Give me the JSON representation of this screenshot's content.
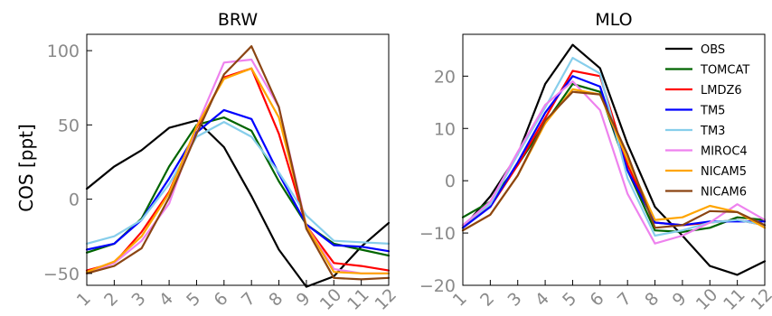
{
  "chart_data": {
    "ylabel": "COS [ppt]",
    "legend": {
      "location": "top-right of MLO panel"
    },
    "series_colors": {
      "OBS": "#000000",
      "TOMCAT": "#006400",
      "LMDZ6": "#ff0000",
      "TM5": "#0000ff",
      "TM3": "#87ceeb",
      "MIROC4": "#ee82ee",
      "NICAM5": "#ffa500",
      "NICAM6": "#8b4513"
    },
    "panels": [
      {
        "type": "line",
        "title": "BRW",
        "x": [
          1,
          2,
          3,
          4,
          5,
          6,
          7,
          8,
          9,
          10,
          11,
          12
        ],
        "xticks": [
          "1",
          "2",
          "3",
          "4",
          "5",
          "6",
          "7",
          "8",
          "9",
          "10",
          "11",
          "12"
        ],
        "ylim": [
          -58,
          111
        ],
        "yticks": [
          -50,
          0,
          50,
          100
        ],
        "series": [
          {
            "name": "OBS",
            "values": [
              7,
              22,
              33,
              48,
              53,
              35,
              2,
              -34,
              -59,
              -52,
              -32,
              -16
            ]
          },
          {
            "name": "TOMCAT",
            "values": [
              -36,
              -30,
              -13,
              22,
              50,
              55,
              46,
              12,
              -17,
              -30,
              -34,
              -38
            ]
          },
          {
            "name": "LMDZ6",
            "values": [
              -48,
              -43,
              -22,
              5,
              48,
              82,
              88,
              44,
              -18,
              -43,
              -45,
              -48
            ]
          },
          {
            "name": "TM5",
            "values": [
              -34,
              -30,
              -14,
              14,
              45,
              60,
              54,
              17,
              -17,
              -31,
              -32,
              -35
            ]
          },
          {
            "name": "TM3",
            "values": [
              -30,
              -25,
              -14,
              10,
              42,
              52,
              42,
              18,
              -11,
              -28,
              -29,
              -30
            ]
          },
          {
            "name": "MIROC4",
            "values": [
              -50,
              -43,
              -28,
              -3,
              49,
              92,
              94,
              62,
              -18,
              -47,
              -50,
              -50
            ]
          },
          {
            "name": "NICAM5",
            "values": [
              -49,
              -42,
              -25,
              4,
              49,
              81,
              88,
              55,
              -18,
              -49,
              -50,
              -50
            ]
          },
          {
            "name": "NICAM6",
            "values": [
              -50,
              -45,
              -33,
              1,
              44,
              84,
              103,
              62,
              -20,
              -53,
              -54,
              -53
            ]
          }
        ]
      },
      {
        "type": "line",
        "title": "MLO",
        "x": [
          1,
          2,
          3,
          4,
          5,
          6,
          7,
          8,
          9,
          10,
          11,
          12
        ],
        "xticks": [
          "1",
          "2",
          "3",
          "4",
          "5",
          "6",
          "7",
          "8",
          "9",
          "10",
          "11",
          "12"
        ],
        "ylim": [
          -20,
          28
        ],
        "yticks": [
          -20,
          -10,
          0,
          10,
          20
        ],
        "series": [
          {
            "name": "OBS",
            "values": [
              -9,
              -3,
              5,
              18.5,
              26,
              21.5,
              7,
              -5,
              -10.5,
              -16.3,
              -18,
              -15.4
            ]
          },
          {
            "name": "TOMCAT",
            "values": [
              -7,
              -4,
              3,
              11,
              18.5,
              17,
              2,
              -9.5,
              -9.8,
              -9,
              -7,
              -7.5
            ]
          },
          {
            "name": "LMDZ6",
            "values": [
              -8.5,
              -5,
              3,
              12,
              21,
              20,
              3,
              -8,
              -8.5,
              -8,
              -7.5,
              -8.5
            ]
          },
          {
            "name": "TM5",
            "values": [
              -9,
              -5,
              3.5,
              13,
              20,
              18,
              2,
              -8,
              -8.5,
              -7.8,
              -7.8,
              -7.8
            ]
          },
          {
            "name": "TM3",
            "values": [
              -8.5,
              -4.5,
              5,
              14,
              23.5,
              20.5,
              0.5,
              -10.5,
              -9.5,
              -8,
              -7.5,
              -8.5
            ]
          },
          {
            "name": "MIROC4",
            "values": [
              -8.5,
              -4,
              5.5,
              14.5,
              19,
              13.5,
              -2.5,
              -12,
              -10.5,
              -8,
              -4.5,
              -7.5
            ]
          },
          {
            "name": "NICAM5",
            "values": [
              -9.5,
              -6.5,
              1,
              11,
              17.5,
              16.5,
              4,
              -7.5,
              -7,
              -4.8,
              -6,
              -9
            ]
          },
          {
            "name": "NICAM6",
            "values": [
              -9.5,
              -6.5,
              1,
              11.5,
              17,
              16.5,
              5,
              -9,
              -8.5,
              -5.8,
              -6,
              -8.5
            ]
          }
        ]
      }
    ]
  }
}
